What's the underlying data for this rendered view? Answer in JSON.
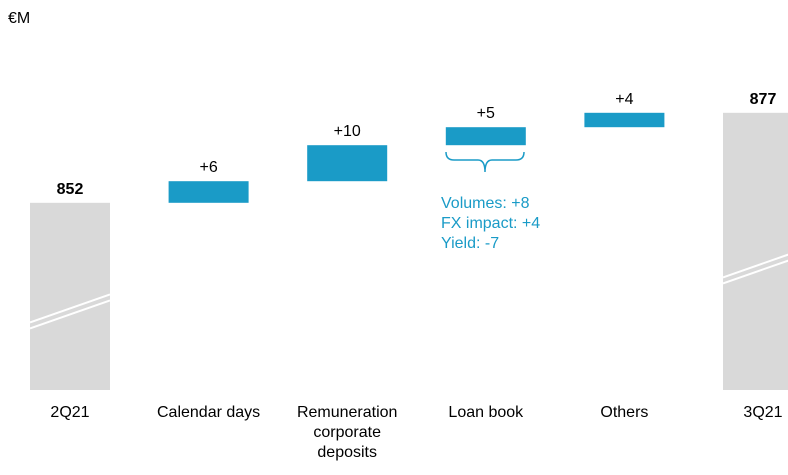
{
  "chart_data": {
    "type": "waterfall",
    "unit": "€M",
    "categories": [
      "2Q21",
      "Calendar days",
      "Remuneration corporate deposits",
      "Loan book",
      "Others",
      "3Q21"
    ],
    "measure": [
      "absolute",
      "relative",
      "relative",
      "relative",
      "relative",
      "absolute"
    ],
    "values": [
      852,
      6,
      10,
      5,
      4,
      877
    ],
    "value_labels": [
      "852",
      "+6",
      "+10",
      "+5",
      "+4",
      "877"
    ],
    "color": "#1a9bc7",
    "total_color": "#d9d9d9",
    "ylim": [
      800,
      880
    ],
    "annotation": [
      "Volumes: +8",
      "FX impact: +4",
      "Yield: -7"
    ]
  }
}
